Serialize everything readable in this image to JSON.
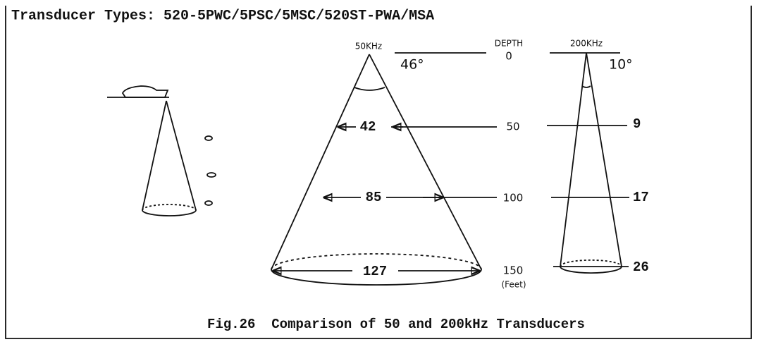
{
  "title": "Transducer Types: 520-5PWC/5PSC/5MSC/520ST-PWA/MSA",
  "cone_50": {
    "label": "50KHz",
    "angle": "46°",
    "widths": [
      "42",
      "85",
      "127"
    ]
  },
  "depth": {
    "label": "DEPTH",
    "values": [
      "0",
      "50",
      "100",
      "150"
    ],
    "unit": "(Feet)"
  },
  "cone_200": {
    "label": "200KHz",
    "angle": "10°",
    "widths": [
      "9",
      "17",
      "26"
    ]
  },
  "caption": "Fig.26  Comparison of 50 and 200kHz Transducers"
}
